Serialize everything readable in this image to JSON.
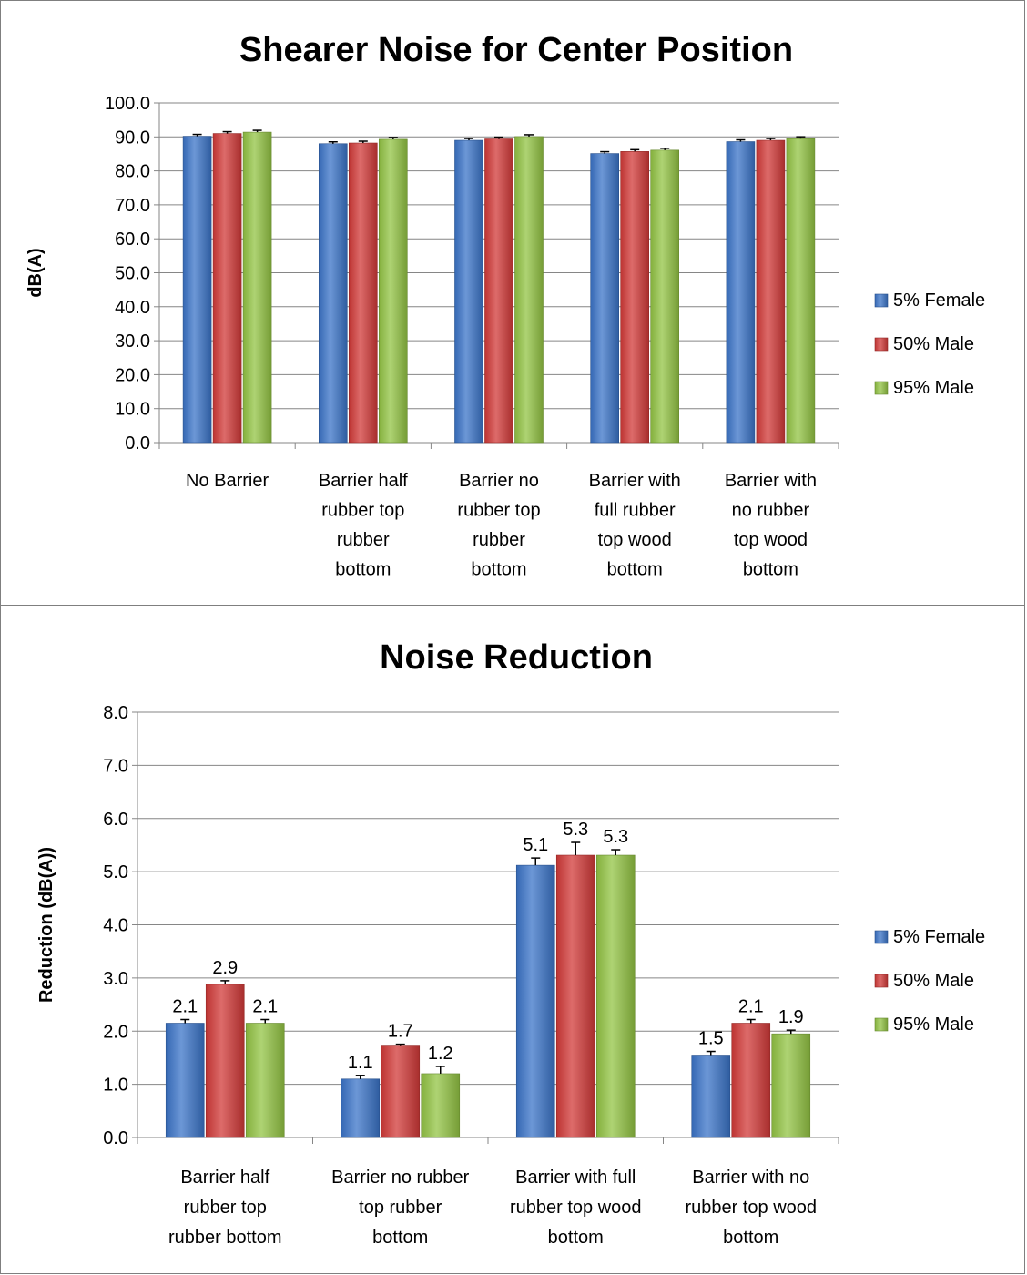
{
  "legend_colors": {
    "5% Female": "#3b74c8",
    "50% Male": "#d23a38",
    "95% Male": "#93c444"
  },
  "chart_data": [
    {
      "type": "bar",
      "title": "Shearer Noise for Center Position",
      "ylabel": "dB(A)",
      "xlabel": "",
      "ylim": [
        0,
        100
      ],
      "yticks": [
        "0.0",
        "10.0",
        "20.0",
        "30.0",
        "40.0",
        "50.0",
        "60.0",
        "70.0",
        "80.0",
        "90.0",
        "100.0"
      ],
      "categories": [
        [
          "No Barrier"
        ],
        [
          "Barrier half",
          "rubber top",
          "rubber",
          "bottom"
        ],
        [
          "Barrier no",
          "rubber top",
          "rubber",
          "bottom"
        ],
        [
          "Barrier with",
          "full rubber",
          "top wood",
          "bottom"
        ],
        [
          "Barrier with",
          "no rubber",
          "top wood",
          "bottom"
        ]
      ],
      "series": [
        {
          "name": "5% Female",
          "color": "#3b74c8",
          "values": [
            90.2,
            88.0,
            89.0,
            85.1,
            88.6
          ]
        },
        {
          "name": "50% Male",
          "color": "#d23a38",
          "values": [
            91.0,
            88.2,
            89.4,
            85.7,
            89.0
          ]
        },
        {
          "name": "95% Male",
          "color": "#93c444",
          "values": [
            91.4,
            89.3,
            90.1,
            86.1,
            89.5
          ]
        }
      ],
      "show_data_labels": false,
      "grid": true,
      "legend": "right"
    },
    {
      "type": "bar",
      "title": "Noise Reduction",
      "ylabel": "Reduction (dB(A))",
      "xlabel": "",
      "ylim": [
        0,
        8
      ],
      "yticks": [
        "0.0",
        "1.0",
        "2.0",
        "3.0",
        "4.0",
        "5.0",
        "6.0",
        "7.0",
        "8.0"
      ],
      "categories": [
        [
          "Barrier half",
          "rubber top",
          "rubber bottom"
        ],
        [
          "Barrier no rubber",
          "top rubber",
          "bottom"
        ],
        [
          "Barrier with full",
          "rubber top wood",
          "bottom"
        ],
        [
          "Barrier with no",
          "rubber top wood",
          "bottom"
        ]
      ],
      "series": [
        {
          "name": "5% Female",
          "color": "#3b74c8",
          "values": [
            2.15,
            1.1,
            5.12,
            1.55
          ],
          "labels": [
            "2.1",
            "1.1",
            "5.1",
            "1.5"
          ]
        },
        {
          "name": "50% Male",
          "color": "#d23a38",
          "values": [
            2.88,
            1.72,
            5.31,
            2.15
          ],
          "labels": [
            "2.9",
            "1.7",
            "5.3",
            "2.1"
          ]
        },
        {
          "name": "95% Male",
          "color": "#93c444",
          "values": [
            2.15,
            1.2,
            5.31,
            1.95
          ],
          "labels": [
            "2.1",
            "1.2",
            "5.3",
            "1.9"
          ]
        }
      ],
      "show_data_labels": true,
      "grid": true,
      "legend": "right"
    }
  ]
}
